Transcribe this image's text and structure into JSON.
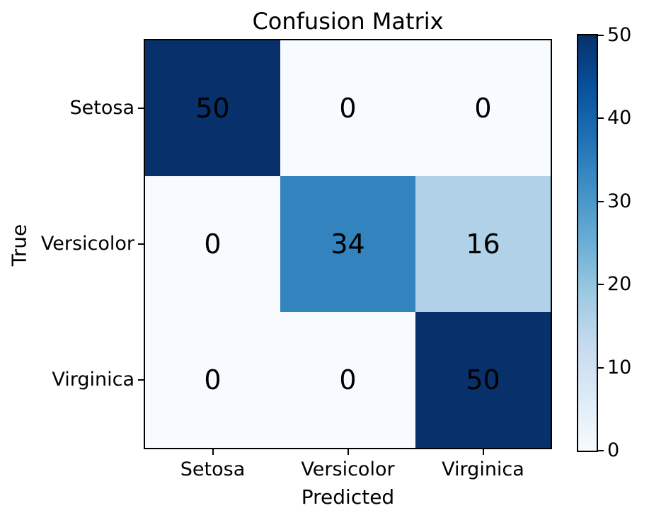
{
  "chart_data": {
    "type": "heatmap",
    "title": "Confusion Matrix",
    "xlabel": "Predicted",
    "ylabel": "True",
    "x_categories": [
      "Setosa",
      "Versicolor",
      "Virginica"
    ],
    "y_categories": [
      "Setosa",
      "Versicolor",
      "Virginica"
    ],
    "matrix": [
      [
        50,
        0,
        0
      ],
      [
        0,
        34,
        16
      ],
      [
        0,
        0,
        50
      ]
    ],
    "vmin": 0,
    "vmax": 50,
    "colorbar_ticks": [
      0,
      10,
      20,
      30,
      40,
      50
    ],
    "colormap": "Blues",
    "colormap_stops": [
      "#f7fbff",
      "#deebf7",
      "#c6dbef",
      "#9ecae1",
      "#6baed6",
      "#4292c6",
      "#2171b5",
      "#08519c",
      "#08306b"
    ],
    "annotation_color": "#000000",
    "spine_color": "#000000",
    "background_color": "#ffffff",
    "grid": false,
    "legend_position": "right-colorbar"
  }
}
